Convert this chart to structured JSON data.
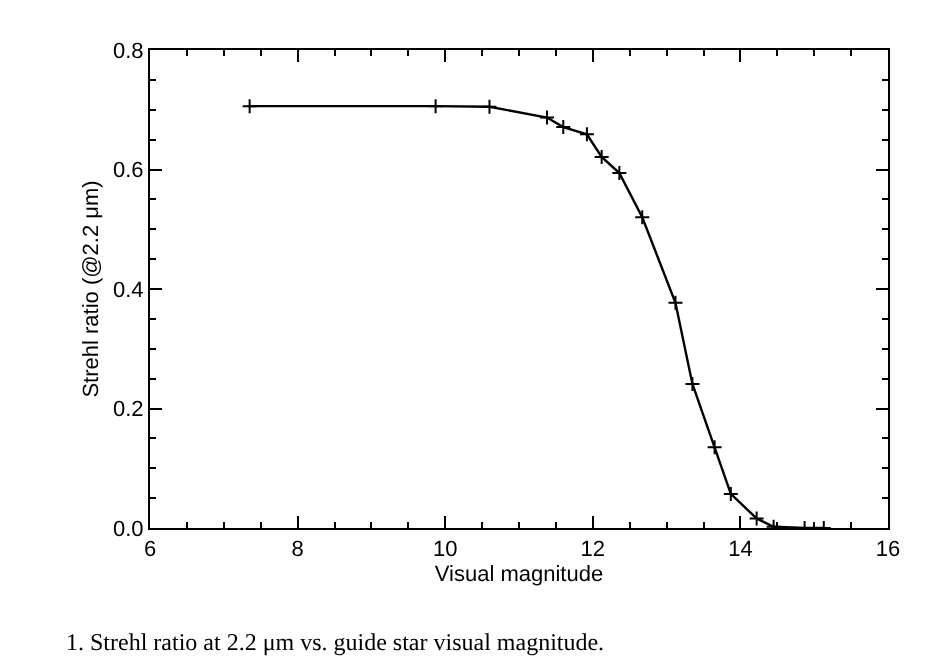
{
  "chart_data": {
    "type": "line",
    "xlabel": "Visual magnitude",
    "ylabel": "Strehl ratio (@2.2 μm)",
    "x": [
      7.35,
      9.87,
      10.6,
      11.38,
      11.6,
      11.92,
      12.12,
      12.36,
      12.67,
      13.12,
      13.35,
      13.65,
      13.87,
      14.22,
      14.45,
      14.87,
      15.13
    ],
    "series": [
      {
        "color": "#000000",
        "values": [
          0.706,
          0.706,
          0.705,
          0.687,
          0.671,
          0.659,
          0.621,
          0.594,
          0.52,
          0.377,
          0.241,
          0.135,
          0.057,
          0.016,
          0.002,
          0,
          0
        ]
      }
    ],
    "xlim": [
      6,
      16
    ],
    "xticks": [
      6,
      8,
      10,
      12,
      14,
      16
    ],
    "ylim": [
      0,
      0.8
    ],
    "yticks": [
      {
        "value": 0,
        "label": "0.0"
      },
      {
        "value": 0.2,
        "label": "0.2"
      },
      {
        "value": 0.4,
        "label": "0.4"
      },
      {
        "value": 0.6,
        "label": "0.6"
      },
      {
        "value": 0.8,
        "label": "0.8"
      }
    ],
    "marker": "cross",
    "line_style": "solid",
    "annotations": [
      "1. Strehl ratio at 2.2 μm vs. guide star visual magnitude."
    ]
  }
}
